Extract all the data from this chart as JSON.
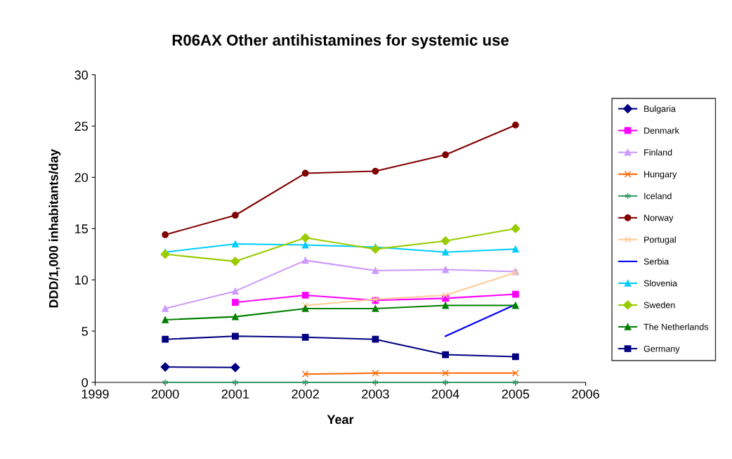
{
  "chart_data": {
    "type": "line",
    "title": "R06AX Other antihistamines for systemic use",
    "xlabel": "Year",
    "ylabel": "DDD/1,000 inhabitants/day",
    "x": [
      2000,
      2001,
      2002,
      2003,
      2004,
      2005
    ],
    "xlim": [
      1999,
      2006
    ],
    "xticks": [
      1999,
      2000,
      2001,
      2002,
      2003,
      2004,
      2005,
      2006
    ],
    "ylim": [
      0,
      30
    ],
    "yticks": [
      0,
      5,
      10,
      15,
      20,
      25,
      30
    ],
    "grid": false,
    "legend": "right",
    "series": [
      {
        "name": "Bulgaria",
        "color": "#000080",
        "marker": "diamond",
        "values": [
          1.5,
          1.45,
          null,
          null,
          null,
          null
        ]
      },
      {
        "name": "Denmark",
        "color": "#ff00ff",
        "marker": "square",
        "values": [
          null,
          7.8,
          8.5,
          8.0,
          8.2,
          8.6
        ]
      },
      {
        "name": "Finland",
        "color": "#cc99ff",
        "marker": "triangle",
        "values": [
          7.2,
          8.9,
          11.9,
          10.9,
          11.0,
          10.8
        ]
      },
      {
        "name": "Hungary",
        "color": "#ff6600",
        "marker": "cross",
        "values": [
          null,
          null,
          0.8,
          0.9,
          0.9,
          0.9
        ]
      },
      {
        "name": "Iceland",
        "color": "#339966",
        "marker": "cross",
        "values": [
          0,
          0,
          0,
          0,
          0,
          0
        ]
      },
      {
        "name": "Norway",
        "color": "#800000",
        "marker": "circle",
        "values": [
          14.4,
          16.3,
          20.4,
          20.6,
          22.2,
          25.1
        ]
      },
      {
        "name": "Portugal",
        "color": "#ffcc99",
        "marker": "cross",
        "values": [
          null,
          null,
          7.5,
          8.1,
          8.5,
          10.7
        ]
      },
      {
        "name": "Serbia",
        "color": "#0000ff",
        "marker": "none",
        "values": [
          null,
          null,
          null,
          null,
          4.5,
          7.6
        ]
      },
      {
        "name": "Slovenia",
        "color": "#00ccff",
        "marker": "triangle",
        "values": [
          12.7,
          13.5,
          13.4,
          13.2,
          12.7,
          13.0
        ]
      },
      {
        "name": "Sweden",
        "color": "#99cc00",
        "marker": "diamond",
        "values": [
          12.5,
          11.8,
          14.1,
          13.0,
          13.8,
          15.0
        ]
      },
      {
        "name": "The Netherlands",
        "color": "#008000",
        "marker": "triangle",
        "values": [
          6.1,
          6.4,
          7.2,
          7.2,
          7.5,
          7.5
        ]
      },
      {
        "name": "Germany",
        "color": "#000080",
        "marker": "square",
        "values": [
          4.2,
          4.5,
          4.4,
          4.2,
          2.7,
          2.5
        ]
      }
    ]
  }
}
